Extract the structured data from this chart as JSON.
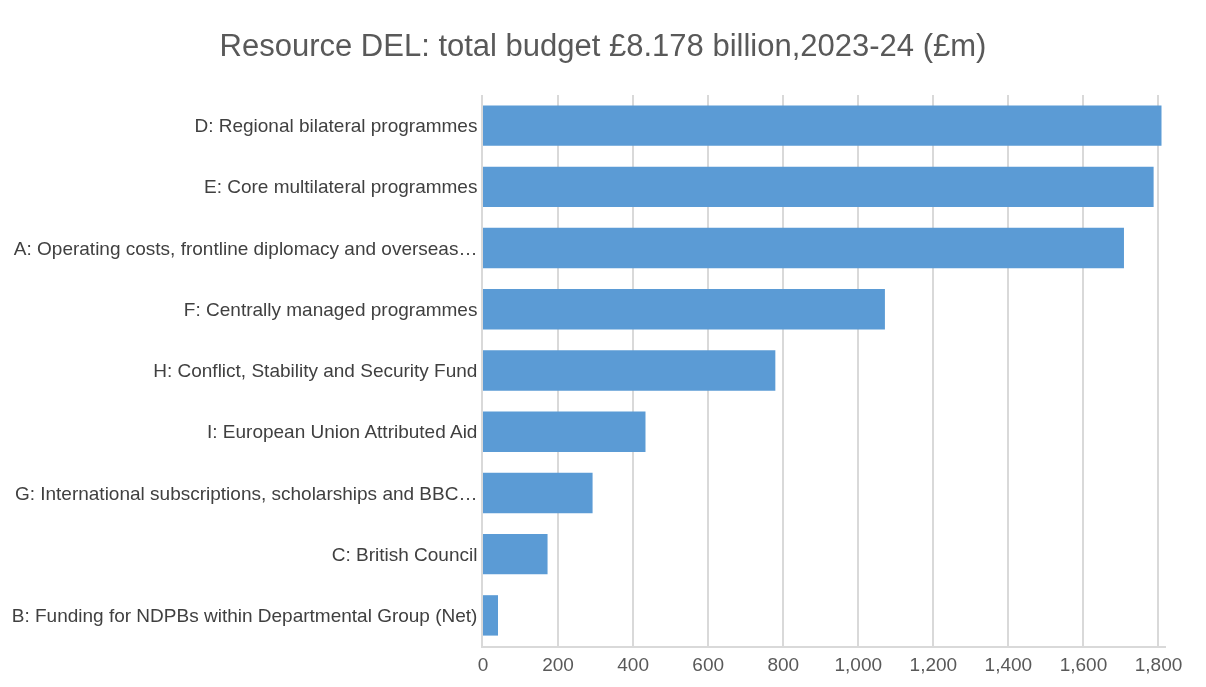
{
  "chart_data": {
    "type": "bar",
    "orientation": "horizontal",
    "title": "Resource DEL: total budget £8.178 billion,2023-24 (£m)",
    "categories": [
      "D: Regional bilateral programmes",
      "E: Core multilateral programmes",
      "A: Operating costs, frontline diplomacy and overseas…",
      "F: Centrally managed programmes",
      "H: Conflict, Stability and Security Fund",
      "I: European Union Attributed Aid",
      "G: International subscriptions, scholarships and BBC…",
      "C: British Council",
      "B: Funding for NDPBs within Departmental Group (Net)"
    ],
    "values": [
      1808,
      1787,
      1708,
      1071,
      779,
      433,
      292,
      172,
      40
    ],
    "color": "#5b9bd5",
    "xlim": [
      0,
      1820
    ],
    "xticks": [
      0,
      200,
      400,
      600,
      800,
      {
        "value": 1000,
        "label": "1,000"
      },
      {
        "value": 1200,
        "label": "1,200"
      },
      {
        "value": 1400,
        "label": "1,400"
      },
      {
        "value": 1600,
        "label": "1,600"
      },
      {
        "value": 1800,
        "label": "1,800"
      }
    ],
    "grid": "x",
    "legend": false
  }
}
